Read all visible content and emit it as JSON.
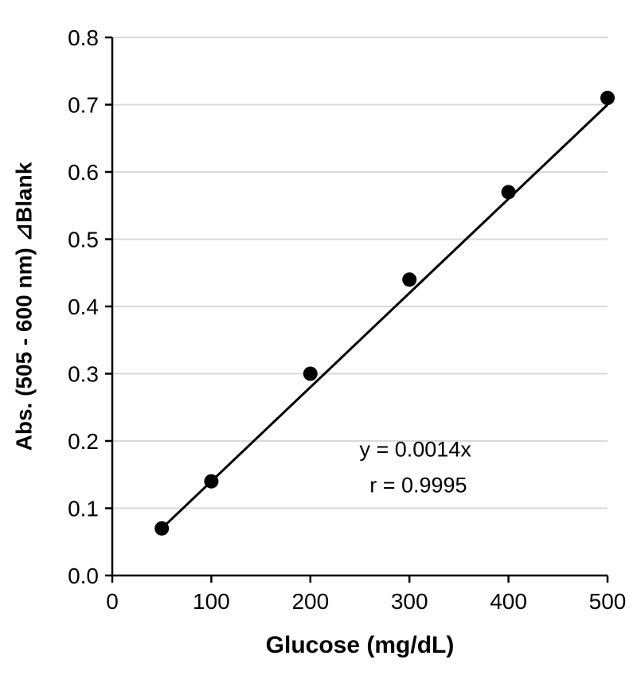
{
  "chart_data": {
    "type": "scatter",
    "title": "",
    "xlabel": "Glucose (mg/dL)",
    "ylabel": "Abs. (505 - 600 nm) ⊿Blank",
    "x": [
      50,
      100,
      200,
      300,
      400,
      500
    ],
    "y": [
      0.07,
      0.14,
      0.3,
      0.44,
      0.57,
      0.71
    ],
    "xlim": [
      0,
      500
    ],
    "ylim": [
      0.0,
      0.8
    ],
    "x_tick_labels": [
      "0",
      "100",
      "200",
      "300",
      "400",
      "500"
    ],
    "y_tick_labels": [
      "0.0",
      "0.1",
      "0.2",
      "0.3",
      "0.4",
      "0.5",
      "0.6",
      "0.7",
      "0.8"
    ],
    "grid": "horizontal-only",
    "legend": "none",
    "trendline": {
      "equation": "y = 0.0014x",
      "slope": 0.0014,
      "intercept": 0.0,
      "x_start": 50,
      "x_end": 500
    },
    "annotations": [
      {
        "text": "y = 0.0014x",
        "x_data": 306,
        "y_data": 0.187
      },
      {
        "text": "r = 0.9995",
        "x_data": 309,
        "y_data": 0.134
      }
    ],
    "colors": {
      "marker": "#000000",
      "trendline": "#000000",
      "axis": "#000000",
      "gridline": "#d9d9d9",
      "text": "#000000",
      "background": "#ffffff"
    }
  }
}
